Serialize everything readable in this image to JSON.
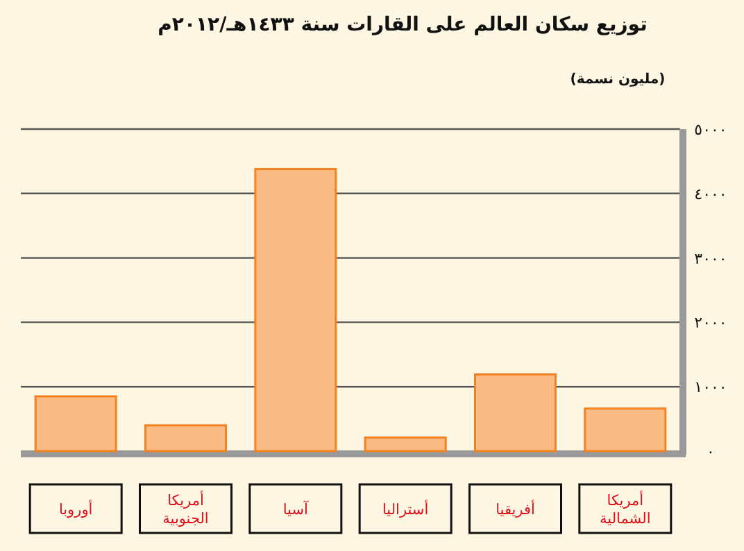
{
  "chart_data": {
    "type": "bar",
    "title": "توزيع سكان العالم على القارات سنة ١٤٣٣هـ/٢٠١٢م",
    "ylabel": "(مليون نسمة)",
    "categories": [
      "أوروبا",
      "أمريكا الجنوبية",
      "آسيا",
      "أستراليا",
      "أفريقيا",
      "أمريكا الشمالية"
    ],
    "values": [
      850,
      400,
      4380,
      210,
      1190,
      660
    ],
    "color": "#fbbb84",
    "ylim": [
      0,
      5000
    ],
    "yticks": [
      {
        "value": 0,
        "label": "٠"
      },
      {
        "value": 1000,
        "label": "١٠٠٠"
      },
      {
        "value": 2000,
        "label": "٢٠٠٠"
      },
      {
        "value": 3000,
        "label": "٣٠٠٠"
      },
      {
        "value": 4000,
        "label": "٤٠٠٠"
      },
      {
        "value": 5000,
        "label": "٥٠٠٠"
      }
    ],
    "grid": "y"
  }
}
